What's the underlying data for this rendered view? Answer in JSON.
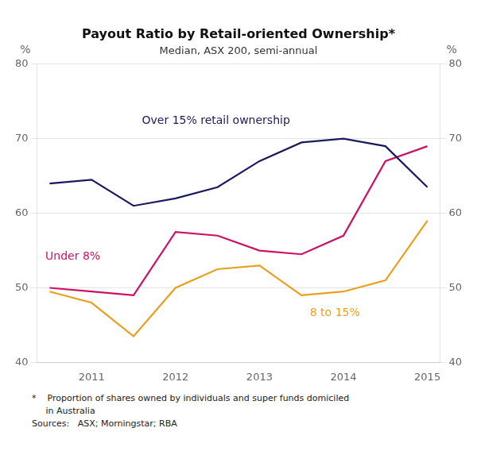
{
  "chart_data": {
    "type": "line",
    "title": "Payout Ratio by Retail-oriented Ownership*",
    "subtitle": "Median, ASX 200, semi-annual",
    "ylabel": "%",
    "y2label": "%",
    "xlim": [
      2010.35,
      2015.15
    ],
    "xticks": [
      2011,
      2012,
      2013,
      2014,
      2015
    ],
    "ylim": [
      40,
      80
    ],
    "yticks": [
      40,
      50,
      60,
      70,
      80
    ],
    "y2lim": [
      40,
      80
    ],
    "y2ticks": [
      40,
      50,
      60,
      70,
      80
    ],
    "grid": "y",
    "x": [
      2010.5,
      2011.0,
      2011.5,
      2012.0,
      2012.5,
      2013.0,
      2013.5,
      2014.0,
      2014.5,
      2015.0
    ],
    "series": [
      {
        "color": "#1a1a5e",
        "values": [
          64.0,
          64.5,
          61.0,
          62.0,
          63.5,
          67.0,
          69.5,
          70.0,
          69.0,
          63.5
        ]
      },
      {
        "color": "#cc1166",
        "values": [
          50.0,
          49.5,
          49.0,
          57.5,
          57.0,
          55.0,
          54.5,
          57.0,
          67.0,
          69.0
        ]
      },
      {
        "color": "#e8a020",
        "values": [
          49.5,
          48.0,
          43.5,
          50.0,
          52.5,
          53.0,
          49.0,
          49.5,
          51.0,
          59.0
        ]
      }
    ],
    "annotations": [
      {
        "x": 2011.6,
        "y": 72.0,
        "text": "Over 15% retail ownership",
        "color": "#1a1a5e"
      },
      {
        "x": 2010.45,
        "y": 53.8,
        "text": "Under 8%",
        "color": "#cc1166"
      },
      {
        "x": 2013.6,
        "y": 46.2,
        "text": "8 to 15%",
        "color": "#e8a020"
      }
    ],
    "footnotes": [
      "*    Proportion of shares owned by individuals and super funds domiciled",
      "     in Australia",
      "Sources:   ASX; Morningstar; RBA"
    ]
  }
}
